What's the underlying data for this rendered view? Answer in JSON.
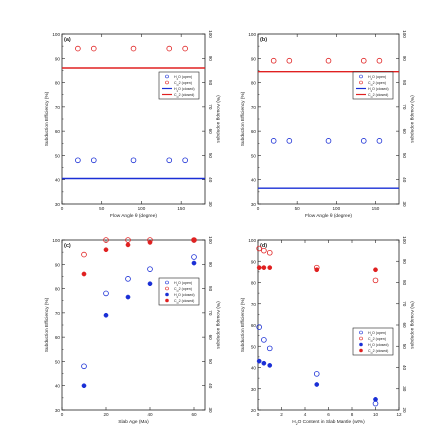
{
  "chart_data": [
    {
      "type": "scatter",
      "panel_label": "(a)",
      "xlabel": "Flow Angle θ (degree)",
      "ylabel": "Subduction Efficiency (%)",
      "ylabel_right": "(%) Aouapg uopnpqns",
      "xlim": [
        0,
        180
      ],
      "ylim": [
        30,
        100
      ],
      "xticks": [
        0,
        50,
        100,
        150
      ],
      "yticks": [
        30,
        40,
        50,
        60,
        70,
        80,
        90,
        100
      ],
      "legend": [
        "H2O (open)",
        "CO2 (open)",
        "H2O (closed)",
        "CO2 (closed)"
      ],
      "legend_position": "center-right",
      "series": [
        {
          "name": "H2O (open)",
          "marker": "open-circle",
          "color": "#1a2fd6",
          "x": [
            20,
            40,
            90,
            135,
            155
          ],
          "y": [
            48,
            48,
            48,
            48,
            48
          ]
        },
        {
          "name": "CO2 (open)",
          "marker": "open-circle",
          "color": "#e02020",
          "x": [
            20,
            40,
            90,
            135,
            155
          ],
          "y": [
            94,
            94,
            94,
            94,
            94
          ]
        },
        {
          "name": "H2O (closed)",
          "marker": "line",
          "color": "#1a2fd6",
          "x": [
            0,
            180
          ],
          "y": [
            40.5,
            40.5
          ]
        },
        {
          "name": "CO2 (closed)",
          "marker": "line",
          "color": "#e02020",
          "x": [
            0,
            180
          ],
          "y": [
            86,
            86
          ]
        }
      ]
    },
    {
      "type": "scatter",
      "panel_label": "(b)",
      "xlabel": "Flow Angle θ (degree)",
      "ylabel": "Subduction Efficiency (%)",
      "ylabel_right": "(%) Aouapg uopnpqns",
      "xlim": [
        0,
        180
      ],
      "ylim": [
        30,
        100
      ],
      "xticks": [
        0,
        50,
        100,
        150
      ],
      "yticks": [
        30,
        40,
        50,
        60,
        70,
        80,
        90,
        100
      ],
      "legend": [
        "H2O (open)",
        "CO2 (open)",
        "H2O (closed)",
        "CO2 (closed)"
      ],
      "legend_position": "center-right",
      "series": [
        {
          "name": "H2O (open)",
          "marker": "open-circle",
          "color": "#1a2fd6",
          "x": [
            20,
            40,
            90,
            135,
            155
          ],
          "y": [
            56,
            56,
            56,
            56,
            56
          ]
        },
        {
          "name": "CO2 (open)",
          "marker": "open-circle",
          "color": "#e02020",
          "x": [
            20,
            40,
            90,
            135,
            155
          ],
          "y": [
            89,
            89,
            89,
            89,
            89
          ]
        },
        {
          "name": "H2O (closed)",
          "marker": "line",
          "color": "#1a2fd6",
          "x": [
            0,
            180
          ],
          "y": [
            36.5,
            36.5
          ]
        },
        {
          "name": "CO2 (closed)",
          "marker": "line",
          "color": "#e02020",
          "x": [
            0,
            180
          ],
          "y": [
            84.5,
            84.5
          ]
        }
      ]
    },
    {
      "type": "scatter",
      "panel_label": "(c)",
      "xlabel": "Slab Age (Ma)",
      "ylabel": "Subduction Efficiency (%)",
      "ylabel_right": "(%) Aouapg uopnpqns",
      "xlim": [
        0,
        65
      ],
      "ylim": [
        30,
        100
      ],
      "xticks": [
        0,
        20,
        40,
        60
      ],
      "yticks": [
        30,
        40,
        50,
        60,
        70,
        80,
        90,
        100
      ],
      "legend": [
        "H2O (open)",
        "CO2 (open)",
        "H2O (closed)",
        "CO2 (closed)"
      ],
      "legend_position": "center-right",
      "series": [
        {
          "name": "H2O (open)",
          "marker": "open-circle",
          "color": "#1a2fd6",
          "x": [
            10,
            20,
            30,
            40,
            60
          ],
          "y": [
            48,
            78,
            84,
            88,
            93
          ]
        },
        {
          "name": "CO2 (open)",
          "marker": "open-circle",
          "color": "#e02020",
          "x": [
            10,
            20,
            30,
            40,
            60
          ],
          "y": [
            94,
            100,
            100,
            100,
            100
          ]
        },
        {
          "name": "H2O (closed)",
          "marker": "filled-circle",
          "color": "#1a2fd6",
          "x": [
            10,
            20,
            30,
            40,
            60
          ],
          "y": [
            40,
            69,
            76.5,
            82,
            90.5
          ]
        },
        {
          "name": "CO2 (closed)",
          "marker": "filled-circle",
          "color": "#e02020",
          "x": [
            10,
            20,
            30,
            40,
            60
          ],
          "y": [
            86,
            96,
            98,
            99,
            100
          ]
        }
      ]
    },
    {
      "type": "scatter",
      "panel_label": "(d)",
      "xlabel": "H2O Content in Slab Mantle (wt%)",
      "ylabel": "Subduction Efficiency (%)",
      "ylabel_right": "(%) Aouapg uopnpqns",
      "xlim": [
        0,
        12
      ],
      "ylim": [
        20,
        100
      ],
      "xticks": [
        0,
        2,
        4,
        6,
        8,
        10,
        12
      ],
      "yticks": [
        20,
        30,
        40,
        50,
        60,
        70,
        80,
        90,
        100
      ],
      "legend": [
        "H2O (open)",
        "CO2 (open)",
        "H2O (closed)",
        "CO2 (closed)"
      ],
      "legend_position": "center-right",
      "series": [
        {
          "name": "H2O (open)",
          "marker": "open-circle",
          "color": "#1a2fd6",
          "x": [
            0.1,
            0.5,
            1,
            5,
            10
          ],
          "y": [
            59,
            53,
            49,
            37,
            23
          ]
        },
        {
          "name": "CO2 (open)",
          "marker": "open-circle",
          "color": "#e02020",
          "x": [
            0.1,
            0.5,
            1,
            5,
            10
          ],
          "y": [
            96,
            95,
            94,
            87,
            81
          ]
        },
        {
          "name": "H2O (closed)",
          "marker": "filled-circle",
          "color": "#1a2fd6",
          "x": [
            0.1,
            0.5,
            1,
            5,
            10
          ],
          "y": [
            43,
            42,
            41,
            32,
            25
          ]
        },
        {
          "name": "CO2 (closed)",
          "marker": "filled-circle",
          "color": "#e02020",
          "x": [
            0.1,
            0.5,
            1,
            5,
            10
          ],
          "y": [
            87,
            87,
            87,
            86,
            86
          ]
        }
      ]
    }
  ]
}
